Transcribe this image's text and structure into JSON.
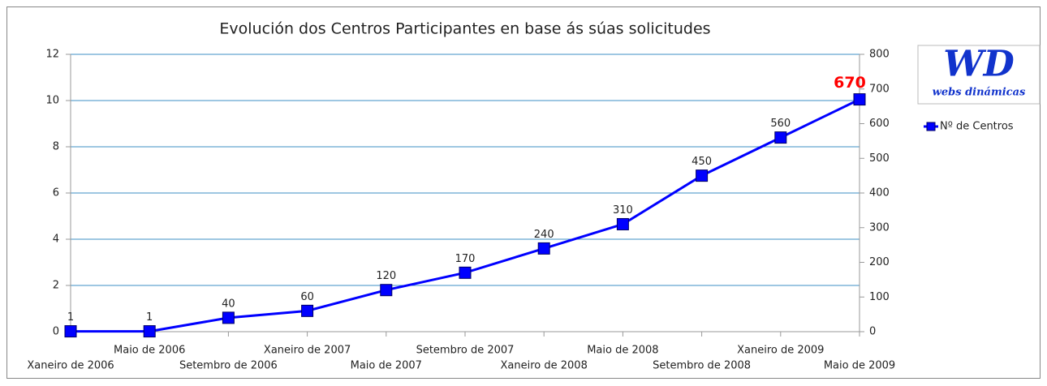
{
  "chart_data": {
    "type": "line",
    "title": "Evolución dos Centros Participantes en base ás súas solicitudes",
    "categories": [
      "Xaneiro de 2006",
      "Maio de 2006",
      "Setembro de 2006",
      "Xaneiro de 2007",
      "Maio de 2007",
      "Setembro de 2007",
      "Xaneiro de 2008",
      "Maio de 2008",
      "Setembro de 2008",
      "Xaneiro de 2009",
      "Maio de 2009"
    ],
    "series": [
      {
        "name": "Nº de Centros",
        "color": "#0000ff",
        "axis": "y2",
        "values": [
          1,
          1,
          40,
          60,
          120,
          170,
          240,
          310,
          450,
          560,
          670
        ]
      }
    ],
    "ylim": [
      0,
      12
    ],
    "yticks": [
      0,
      2,
      4,
      6,
      8,
      10,
      12
    ],
    "y2lim": [
      0,
      800
    ],
    "y2ticks": [
      0,
      100,
      200,
      300,
      400,
      500,
      600,
      700,
      800
    ],
    "grid": true,
    "legend": "right",
    "label_highlight_color": "#ff0000"
  },
  "logo": {
    "title": "WD",
    "subtitle": "webs dinámicas"
  }
}
